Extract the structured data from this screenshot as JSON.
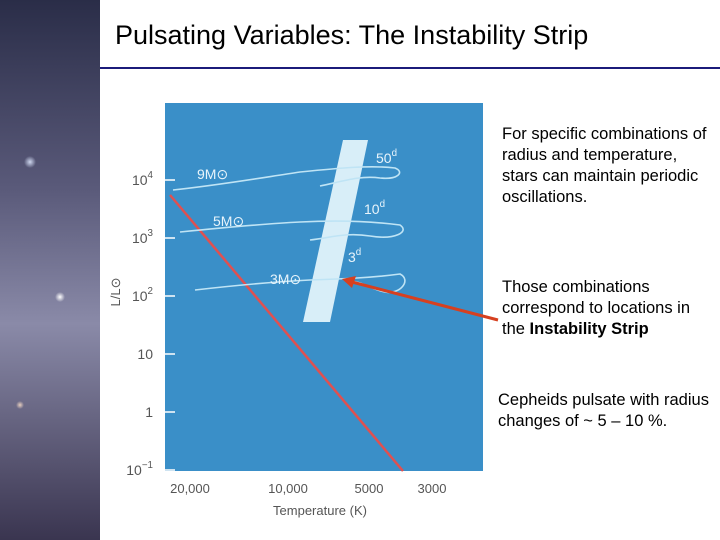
{
  "header": {
    "title": "Pulsating Variables: The Instability Strip"
  },
  "figure": {
    "y_axis_label": "L/L⊙",
    "x_axis_label": "Temperature (K)",
    "yticks": [
      {
        "base": "10",
        "exp": "4"
      },
      {
        "base": "10",
        "exp": "3"
      },
      {
        "base": "10",
        "exp": "2"
      },
      {
        "base": "10",
        "exp": ""
      },
      {
        "base": "1",
        "exp": ""
      },
      {
        "base": "10",
        "exp": "−1"
      }
    ],
    "xticks": [
      "20,000",
      "10,000",
      "5000",
      "3000"
    ],
    "tracks": [
      "9M⊙",
      "5M⊙",
      "3M⊙"
    ],
    "periods": [
      {
        "num": "50",
        "unit": "d"
      },
      {
        "num": "10",
        "unit": "d"
      },
      {
        "num": "3",
        "unit": "d"
      }
    ]
  },
  "paragraphs": [
    {
      "text": "For specific combinations of radius and temperature, stars can maintain periodic oscillations."
    },
    {
      "text": "Those combinations correspond to locations in the ",
      "bold": "Instability Strip"
    },
    {
      "text": "Cepheids pulsate with radius changes of ~ 5 – 10 %."
    }
  ]
}
